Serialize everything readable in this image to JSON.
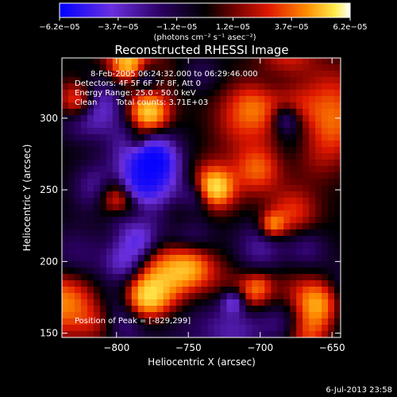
{
  "colorbar": {
    "tick_labels": [
      "−6.2e−05",
      "−3.7e−05",
      "−1.2e−05",
      "1.2e−05",
      "3.7e−05",
      "6.2e−05"
    ],
    "tick_values": [
      -6.2e-05,
      -3.7e-05,
      -1.2e-05,
      1.2e-05,
      3.7e-05,
      6.2e-05
    ],
    "range": [
      -6.2e-05,
      6.2e-05
    ],
    "units": "(photons cm⁻² s⁻¹ asec⁻²)",
    "colors": [
      "#0000ff",
      "#7030d8",
      "#200050",
      "#000000",
      "#800000",
      "#e02000",
      "#ff8000",
      "#ffe040",
      "#ffffff"
    ]
  },
  "title": "Reconstructed RHESSI Image",
  "info": {
    "line1": "8-Feb-2005 06:24:32.000 to 06:29:46.000",
    "line2": "Detectors: 4F 5F 6F 7F 8F, Att 0",
    "line3": "Energy Range: 25.0 - 50.0 keV",
    "line4_method": "Clean",
    "line4_counts": "Total counts: 3.71E+03"
  },
  "peak_label": "Position of Peak = [-829,299]",
  "axes": {
    "xlabel": "Heliocentric X (arcsec)",
    "ylabel": "Heliocentric Y (arcsec)",
    "x_range": [
      -838,
      -644
    ],
    "y_range": [
      147,
      342
    ],
    "x_ticks": [
      {
        "value": -800,
        "label": "−800"
      },
      {
        "value": -750,
        "label": "−750"
      },
      {
        "value": -700,
        "label": "−700"
      },
      {
        "value": -650,
        "label": "−650"
      }
    ],
    "y_ticks": [
      {
        "value": 150,
        "label": "150"
      },
      {
        "value": 200,
        "label": "200"
      },
      {
        "value": 250,
        "label": "250"
      },
      {
        "value": 300,
        "label": "300"
      }
    ]
  },
  "timestamp": "6-Jul-2013 23:58",
  "image_seed": 20050208
}
